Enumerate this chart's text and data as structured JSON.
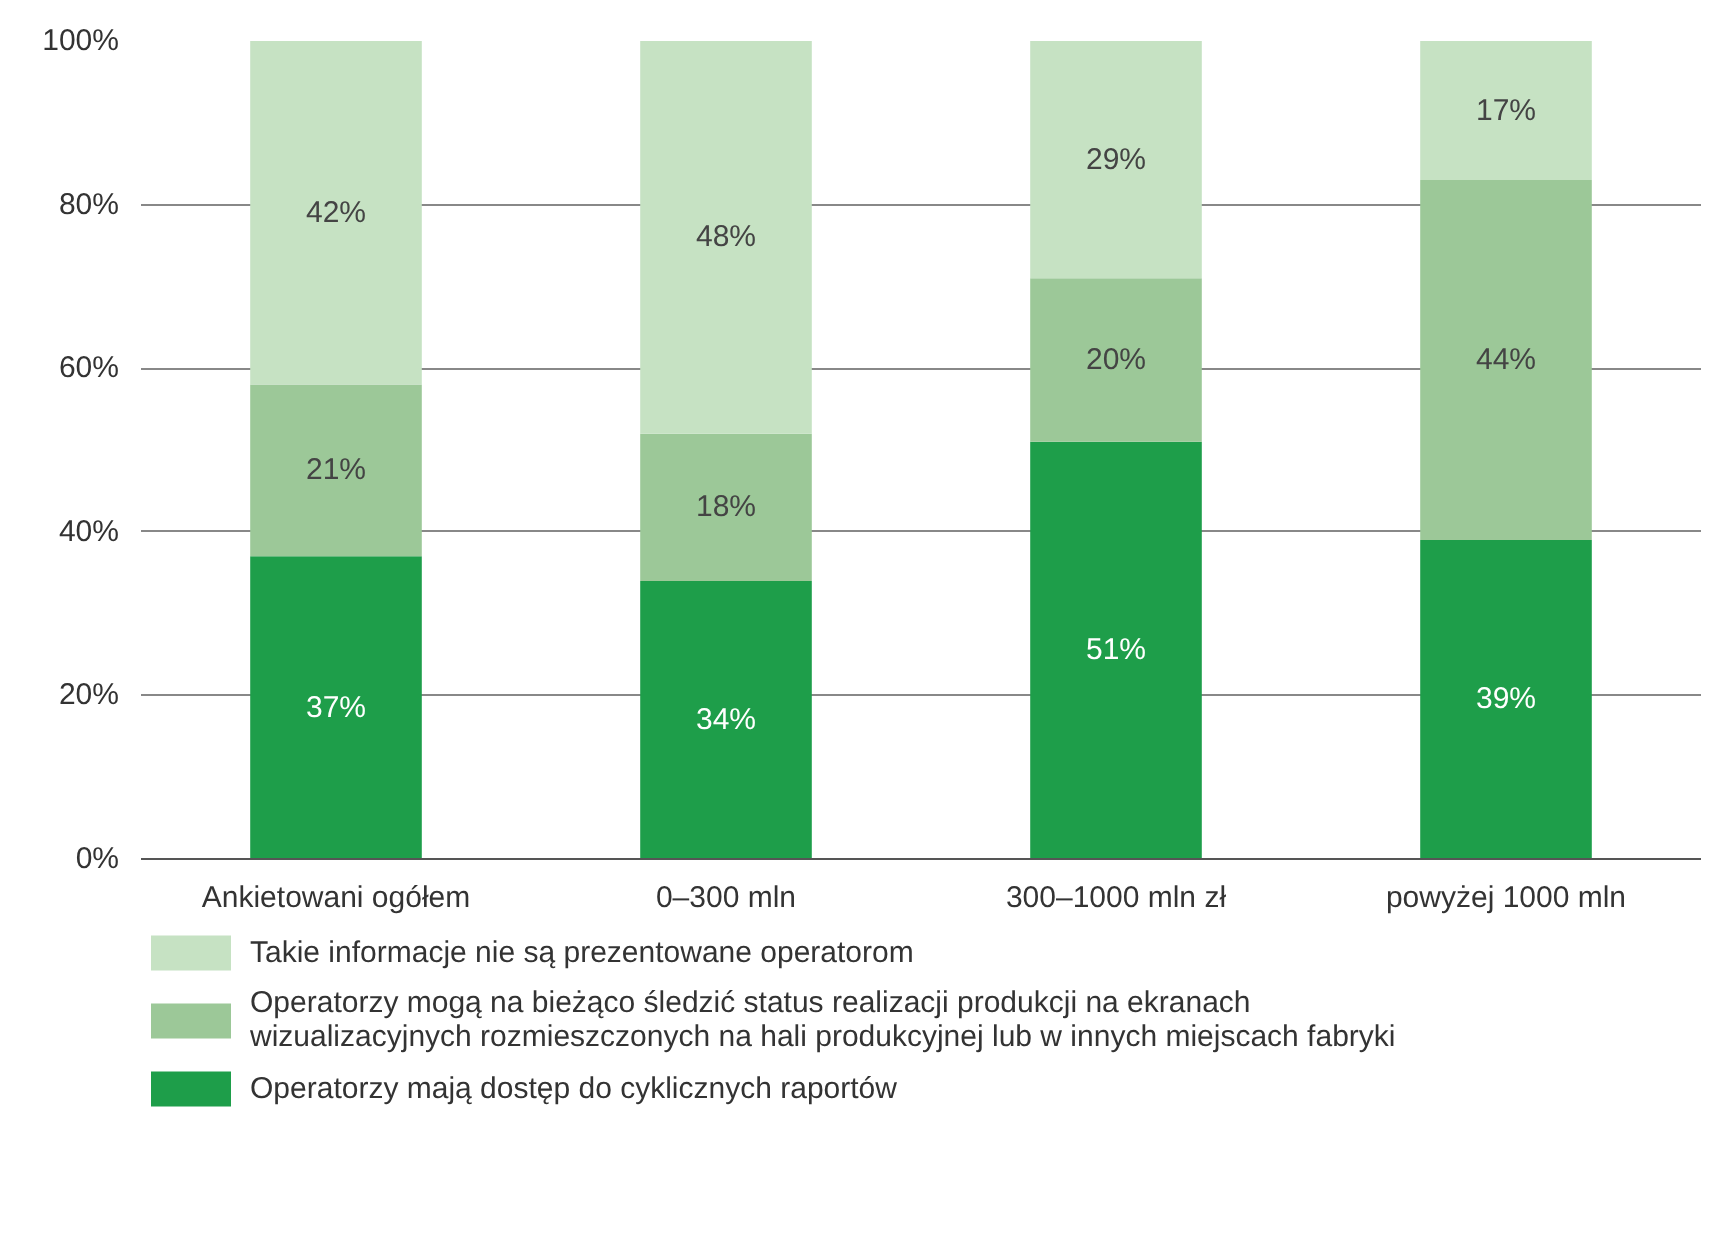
{
  "chart_data": {
    "type": "bar",
    "stacked": true,
    "categories": [
      "Ankietowani ogółem",
      "0–300 mln",
      "300–1000 mln zł",
      "powyżej 1000 mln"
    ],
    "series": [
      {
        "name": "Operatorzy mają dostęp do cyklicznych raportów",
        "color": "#1e9e4a",
        "values": [
          37,
          34,
          51,
          39
        ]
      },
      {
        "name": "Operatorzy mogą na bieżąco śledzić status realizacji produkcji na ekranach wizualizacyjnych rozmieszczonych na hali produkcyjnej lub w innych miejscach fabryki",
        "color": "#9cc898",
        "values": [
          21,
          18,
          20,
          44
        ]
      },
      {
        "name": "Takie informacje nie są prezentowane operatorom",
        "color": "#c6e2c3",
        "values": [
          42,
          48,
          29,
          17
        ]
      }
    ],
    "ylim": [
      0,
      100
    ],
    "yticks": [
      {
        "value": 0,
        "label": "0%"
      },
      {
        "value": 20,
        "label": "20%"
      },
      {
        "value": 40,
        "label": "40%"
      },
      {
        "value": 60,
        "label": "60%"
      },
      {
        "value": 80,
        "label": "80%"
      },
      {
        "value": 100,
        "label": "100%"
      }
    ],
    "value_labels": [
      [
        "37%",
        "34%",
        "51%",
        "39%"
      ],
      [
        "21%",
        "18%",
        "20%",
        "44%"
      ],
      [
        "42%",
        "48%",
        "29%",
        "17%"
      ]
    ],
    "grid": "y",
    "legend": "bottom"
  }
}
